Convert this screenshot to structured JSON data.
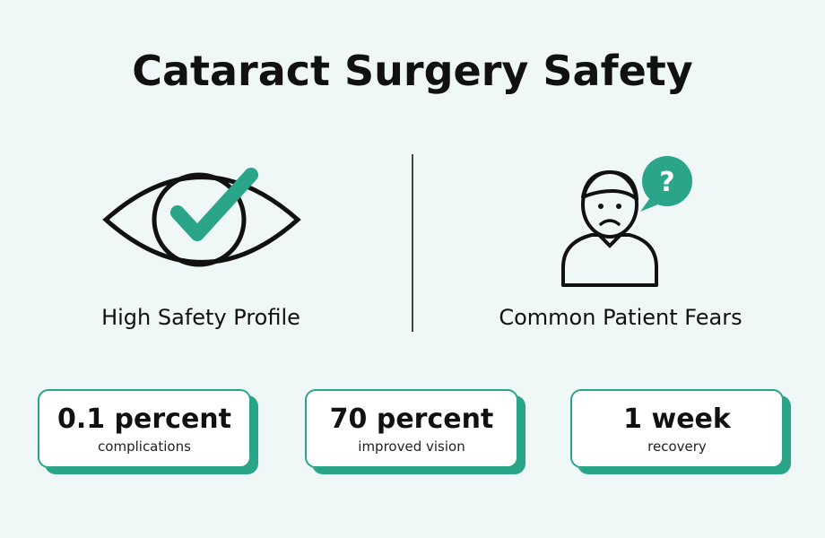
{
  "header": {
    "title": "Cataract Surgery Safety"
  },
  "panels": [
    {
      "label": "High Safety Profile"
    },
    {
      "label": "Common Patient Fears"
    }
  ],
  "stats": [
    {
      "value": "0.1 percent",
      "caption": "complications"
    },
    {
      "value": "70 percent",
      "caption": "improved vision"
    },
    {
      "value": "1 week",
      "caption": "recovery"
    }
  ]
}
